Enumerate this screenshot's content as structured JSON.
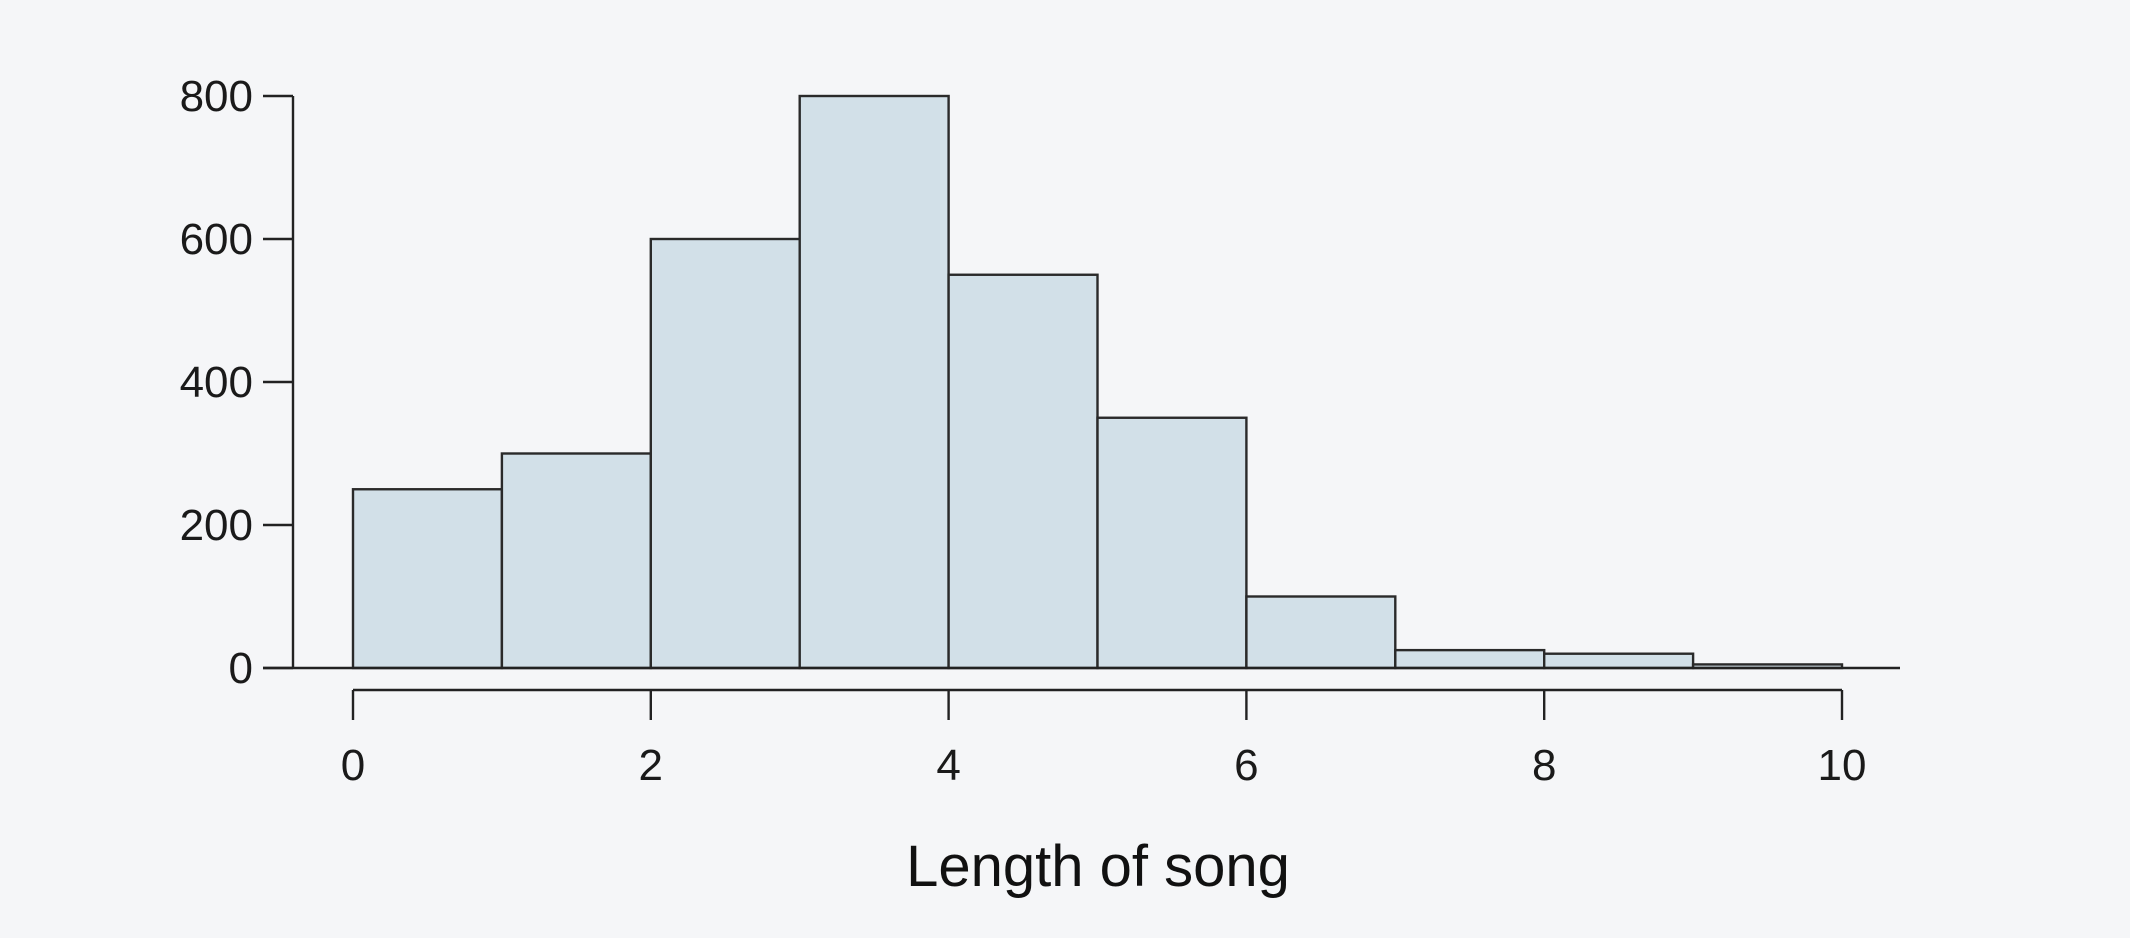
{
  "chart_data": {
    "type": "bar",
    "title": "",
    "xlabel": "Length of song",
    "ylabel": "",
    "bins": [
      {
        "start": 0,
        "end": 1,
        "count": 250
      },
      {
        "start": 1,
        "end": 2,
        "count": 300
      },
      {
        "start": 2,
        "end": 3,
        "count": 600
      },
      {
        "start": 3,
        "end": 4,
        "count": 800
      },
      {
        "start": 4,
        "end": 5,
        "count": 550
      },
      {
        "start": 5,
        "end": 6,
        "count": 350
      },
      {
        "start": 6,
        "end": 7,
        "count": 100
      },
      {
        "start": 7,
        "end": 8,
        "count": 25
      },
      {
        "start": 8,
        "end": 9,
        "count": 20
      },
      {
        "start": 9,
        "end": 10,
        "count": 5
      }
    ],
    "xlim": [
      0,
      10
    ],
    "ylim": [
      0,
      800
    ],
    "xticks": [
      "0",
      "2",
      "4",
      "6",
      "8",
      "10"
    ],
    "yticks": [
      "0",
      "200",
      "400",
      "600",
      "800"
    ],
    "grid": false,
    "legend": "none",
    "colors": {
      "bar_fill": "#d2e0e8",
      "bar_edge": "#2a2a2a",
      "background": "#f5f6f8"
    }
  }
}
